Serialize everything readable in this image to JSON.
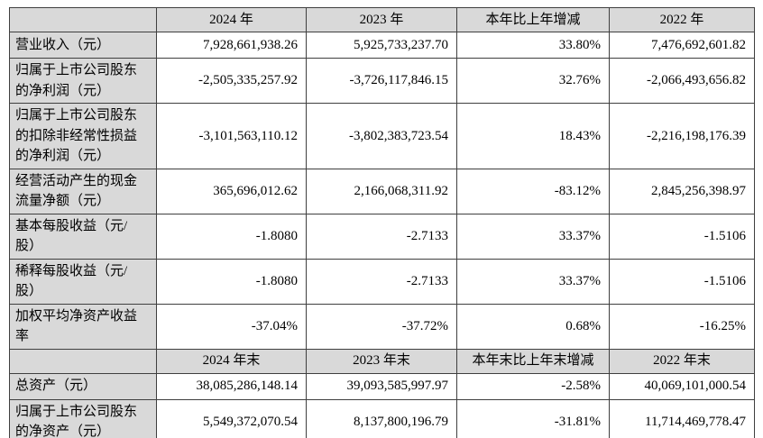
{
  "table": {
    "style": {
      "header_bg": "#d9d9d9",
      "label_bg": "#d9d9d9",
      "border_color": "#3f3f3f",
      "text_color": "#000000",
      "page_bg": "#ffffff"
    },
    "sections": [
      {
        "header": [
          "",
          "2024 年",
          "2023 年",
          "本年比上年增减",
          "2022 年"
        ],
        "rows": [
          {
            "label": "营业收入（元）",
            "values": [
              "7,928,661,938.26",
              "5,925,733,237.70",
              "33.80%",
              "7,476,692,601.82"
            ]
          },
          {
            "label": "归属于上市公司股东\n的净利润（元）",
            "values": [
              "-2,505,335,257.92",
              "-3,726,117,846.15",
              "32.76%",
              "-2,066,493,656.82"
            ]
          },
          {
            "label": "归属于上市公司股东\n的扣除非经常性损益\n的净利润（元）",
            "values": [
              "-3,101,563,110.12",
              "-3,802,383,723.54",
              "18.43%",
              "-2,216,198,176.39"
            ]
          },
          {
            "label": "经营活动产生的现金\n流量净额（元）",
            "values": [
              "365,696,012.62",
              "2,166,068,311.92",
              "-83.12%",
              "2,845,256,398.97"
            ]
          },
          {
            "label": "基本每股收益（元/\n股）",
            "values": [
              "-1.8080",
              "-2.7133",
              "33.37%",
              "-1.5106"
            ]
          },
          {
            "label": "稀释每股收益（元/\n股）",
            "values": [
              "-1.8080",
              "-2.7133",
              "33.37%",
              "-1.5106"
            ]
          },
          {
            "label": "加权平均净资产收益\n率",
            "values": [
              "-37.04%",
              "-37.72%",
              "0.68%",
              "-16.25%"
            ]
          }
        ]
      },
      {
        "header": [
          "",
          "2024 年末",
          "2023 年末",
          "本年末比上年末增减",
          "2022 年末"
        ],
        "rows": [
          {
            "label": "总资产（元）",
            "values": [
              "38,085,286,148.14",
              "39,093,585,997.97",
              "-2.58%",
              "40,069,101,000.54"
            ]
          },
          {
            "label": "归属于上市公司股东\n的净资产（元）",
            "values": [
              "5,549,372,070.54",
              "8,137,800,196.79",
              "-31.81%",
              "11,714,469,778.47"
            ]
          }
        ]
      }
    ]
  }
}
